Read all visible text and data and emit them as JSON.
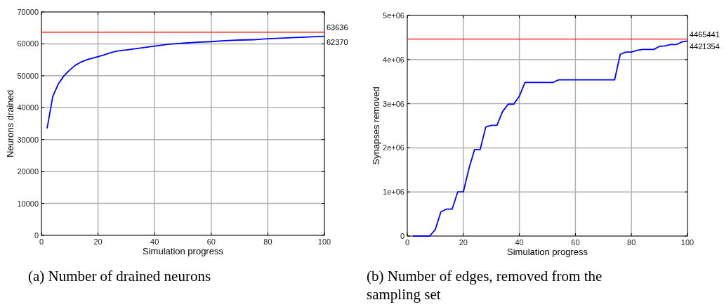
{
  "chart_data": [
    {
      "type": "line",
      "title": "(a) Number of drained neurons",
      "xlabel": "Simulation progress",
      "ylabel": "Neurons drained",
      "xlim": [
        0,
        100
      ],
      "xticks": [
        0,
        20,
        40,
        60,
        80,
        100
      ],
      "ylim": [
        0,
        70000
      ],
      "yticks": [
        0,
        10000,
        20000,
        30000,
        40000,
        50000,
        60000,
        70000
      ],
      "grid": true,
      "series": [
        {
          "color": "#0000ff",
          "x": [
            2,
            4,
            6,
            8,
            10,
            12,
            14,
            16,
            18,
            20,
            22,
            24,
            26,
            28,
            30,
            35,
            40,
            45,
            50,
            55,
            60,
            65,
            70,
            75,
            80,
            90,
            100
          ],
          "values": [
            33500,
            43500,
            47500,
            50000,
            51800,
            53300,
            54300,
            55000,
            55500,
            56000,
            56500,
            57100,
            57600,
            57900,
            58100,
            58700,
            59300,
            59900,
            60200,
            60500,
            60700,
            61000,
            61200,
            61300,
            61600,
            62000,
            62370
          ]
        }
      ],
      "ref_lines": [
        {
          "axis": "y",
          "value": 63636,
          "label": "63636",
          "color": "#ff0000"
        }
      ],
      "annotations": [
        {
          "text": "62370",
          "x": 100,
          "y": 62370
        }
      ]
    },
    {
      "type": "line",
      "title": "(b) Number of edges, removed from the sampling set",
      "xlabel": "Simulation progress",
      "ylabel": "Synapses removed",
      "xlim": [
        0,
        100
      ],
      "xticks": [
        0,
        20,
        40,
        60,
        80,
        100
      ],
      "ylim": [
        0,
        5000000
      ],
      "yticks": [
        0,
        {
          "value": 1000000,
          "label": "1e+06"
        },
        {
          "value": 2000000,
          "label": "2e+06"
        },
        {
          "value": 3000000,
          "label": "3e+06"
        },
        {
          "value": 4000000,
          "label": "4e+06"
        },
        {
          "value": 5000000,
          "label": "5e+06"
        }
      ],
      "grid": true,
      "series": [
        {
          "color": "#0000ff",
          "x": [
            2,
            8,
            10,
            12,
            14,
            16,
            18,
            20,
            22,
            24,
            26,
            28,
            30,
            32,
            34,
            36,
            38,
            40,
            42,
            52,
            54,
            74,
            76,
            78,
            80,
            82,
            84,
            88,
            90,
            92,
            94,
            96,
            98,
            100
          ],
          "values": [
            0,
            0,
            150000,
            550000,
            610000,
            610000,
            1000000,
            1000000,
            1530000,
            1960000,
            1960000,
            2470000,
            2510000,
            2510000,
            2820000,
            2990000,
            2990000,
            3170000,
            3480000,
            3480000,
            3540000,
            3540000,
            4120000,
            4170000,
            4170000,
            4210000,
            4230000,
            4230000,
            4300000,
            4310000,
            4340000,
            4340000,
            4400000,
            4421354
          ]
        }
      ],
      "ref_lines": [
        {
          "axis": "y",
          "value": 4465441,
          "label": "4465441",
          "color": "#ff0000"
        }
      ],
      "annotations": [
        {
          "text": "4421354",
          "x": 100,
          "y": 4421354
        }
      ]
    }
  ]
}
